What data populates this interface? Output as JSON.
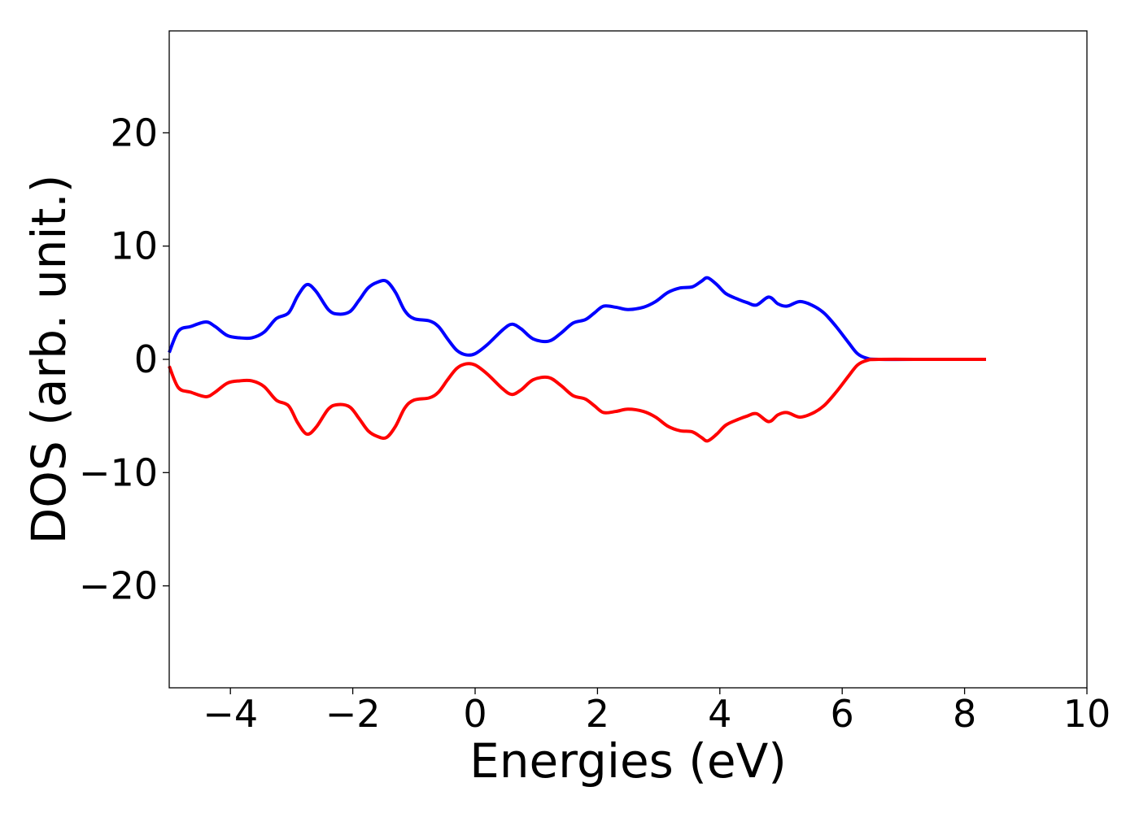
{
  "chart_data": {
    "type": "line",
    "title": "",
    "xlabel": "Energies (eV)",
    "ylabel": "DOS (arb. unit.)",
    "xlim": [
      -5,
      10
    ],
    "ylim": [
      -29,
      29
    ],
    "grid": false,
    "xticks": [
      -4,
      -2,
      0,
      2,
      4,
      6,
      8,
      10
    ],
    "yticks": [
      -20,
      -10,
      0,
      10,
      20
    ],
    "xtick_labels": [
      "−4",
      "−2",
      "0",
      "2",
      "4",
      "6",
      "8",
      "10"
    ],
    "ytick_labels": [
      "−20",
      "−10",
      "0",
      "10",
      "20"
    ],
    "series": [
      {
        "color": "#0000ff",
        "points": [
          [
            -5.0,
            0.6
          ],
          [
            -4.85,
            2.5
          ],
          [
            -4.65,
            2.9
          ],
          [
            -4.4,
            3.3
          ],
          [
            -4.25,
            2.9
          ],
          [
            -4.05,
            2.1
          ],
          [
            -3.85,
            1.9
          ],
          [
            -3.65,
            1.9
          ],
          [
            -3.45,
            2.4
          ],
          [
            -3.25,
            3.6
          ],
          [
            -3.05,
            4.1
          ],
          [
            -2.9,
            5.6
          ],
          [
            -2.75,
            6.6
          ],
          [
            -2.6,
            6.0
          ],
          [
            -2.4,
            4.4
          ],
          [
            -2.25,
            4.0
          ],
          [
            -2.05,
            4.2
          ],
          [
            -1.9,
            5.2
          ],
          [
            -1.75,
            6.3
          ],
          [
            -1.6,
            6.8
          ],
          [
            -1.45,
            6.9
          ],
          [
            -1.3,
            5.9
          ],
          [
            -1.15,
            4.3
          ],
          [
            -1.0,
            3.6
          ],
          [
            -0.75,
            3.4
          ],
          [
            -0.6,
            2.9
          ],
          [
            -0.45,
            1.8
          ],
          [
            -0.3,
            0.8
          ],
          [
            -0.15,
            0.4
          ],
          [
            0.0,
            0.5
          ],
          [
            0.2,
            1.3
          ],
          [
            0.45,
            2.6
          ],
          [
            0.6,
            3.1
          ],
          [
            0.75,
            2.7
          ],
          [
            0.95,
            1.8
          ],
          [
            1.2,
            1.6
          ],
          [
            1.4,
            2.3
          ],
          [
            1.6,
            3.2
          ],
          [
            1.8,
            3.5
          ],
          [
            1.95,
            4.1
          ],
          [
            2.1,
            4.7
          ],
          [
            2.3,
            4.6
          ],
          [
            2.5,
            4.4
          ],
          [
            2.75,
            4.6
          ],
          [
            2.95,
            5.1
          ],
          [
            3.15,
            5.9
          ],
          [
            3.35,
            6.3
          ],
          [
            3.55,
            6.4
          ],
          [
            3.7,
            6.9
          ],
          [
            3.8,
            7.2
          ],
          [
            3.95,
            6.6
          ],
          [
            4.1,
            5.8
          ],
          [
            4.3,
            5.3
          ],
          [
            4.45,
            5.0
          ],
          [
            4.6,
            4.8
          ],
          [
            4.8,
            5.5
          ],
          [
            4.95,
            4.9
          ],
          [
            5.1,
            4.7
          ],
          [
            5.3,
            5.1
          ],
          [
            5.5,
            4.8
          ],
          [
            5.7,
            4.1
          ],
          [
            5.9,
            2.9
          ],
          [
            6.1,
            1.5
          ],
          [
            6.25,
            0.5
          ],
          [
            6.4,
            0.1
          ],
          [
            6.6,
            0.0
          ],
          [
            7.5,
            0.0
          ],
          [
            8.35,
            0.0
          ]
        ]
      },
      {
        "color": "#ff0000",
        "points": [
          [
            -5.0,
            -0.6
          ],
          [
            -4.85,
            -2.5
          ],
          [
            -4.65,
            -2.9
          ],
          [
            -4.4,
            -3.3
          ],
          [
            -4.25,
            -2.9
          ],
          [
            -4.05,
            -2.1
          ],
          [
            -3.85,
            -1.9
          ],
          [
            -3.65,
            -1.9
          ],
          [
            -3.45,
            -2.4
          ],
          [
            -3.25,
            -3.6
          ],
          [
            -3.05,
            -4.1
          ],
          [
            -2.9,
            -5.6
          ],
          [
            -2.75,
            -6.6
          ],
          [
            -2.6,
            -6.0
          ],
          [
            -2.4,
            -4.4
          ],
          [
            -2.25,
            -4.0
          ],
          [
            -2.05,
            -4.2
          ],
          [
            -1.9,
            -5.2
          ],
          [
            -1.75,
            -6.3
          ],
          [
            -1.6,
            -6.8
          ],
          [
            -1.45,
            -6.9
          ],
          [
            -1.3,
            -5.9
          ],
          [
            -1.15,
            -4.3
          ],
          [
            -1.0,
            -3.6
          ],
          [
            -0.75,
            -3.4
          ],
          [
            -0.6,
            -2.9
          ],
          [
            -0.45,
            -1.8
          ],
          [
            -0.3,
            -0.8
          ],
          [
            -0.15,
            -0.4
          ],
          [
            0.0,
            -0.5
          ],
          [
            0.2,
            -1.3
          ],
          [
            0.45,
            -2.6
          ],
          [
            0.6,
            -3.1
          ],
          [
            0.75,
            -2.7
          ],
          [
            0.95,
            -1.8
          ],
          [
            1.2,
            -1.6
          ],
          [
            1.4,
            -2.3
          ],
          [
            1.6,
            -3.2
          ],
          [
            1.8,
            -3.5
          ],
          [
            1.95,
            -4.1
          ],
          [
            2.1,
            -4.7
          ],
          [
            2.3,
            -4.6
          ],
          [
            2.5,
            -4.4
          ],
          [
            2.75,
            -4.6
          ],
          [
            2.95,
            -5.1
          ],
          [
            3.15,
            -5.9
          ],
          [
            3.35,
            -6.3
          ],
          [
            3.55,
            -6.4
          ],
          [
            3.7,
            -6.9
          ],
          [
            3.8,
            -7.2
          ],
          [
            3.95,
            -6.6
          ],
          [
            4.1,
            -5.8
          ],
          [
            4.3,
            -5.3
          ],
          [
            4.45,
            -5.0
          ],
          [
            4.6,
            -4.8
          ],
          [
            4.8,
            -5.5
          ],
          [
            4.95,
            -4.9
          ],
          [
            5.1,
            -4.7
          ],
          [
            5.3,
            -5.1
          ],
          [
            5.5,
            -4.8
          ],
          [
            5.7,
            -4.1
          ],
          [
            5.9,
            -2.9
          ],
          [
            6.1,
            -1.5
          ],
          [
            6.25,
            -0.5
          ],
          [
            6.4,
            -0.1
          ],
          [
            6.6,
            0.0
          ],
          [
            7.5,
            0.0
          ],
          [
            8.35,
            0.0
          ]
        ]
      }
    ]
  }
}
